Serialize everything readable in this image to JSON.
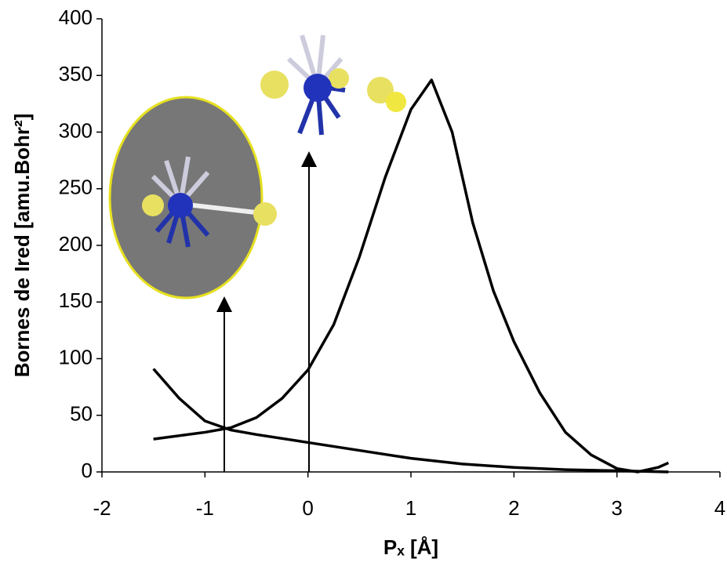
{
  "chart_data": {
    "type": "line",
    "xlabel": "Pₓ [Å]",
    "ylabel": "Bornes de Ired [amu.Bohr²]",
    "xlim": [
      -2,
      4
    ],
    "xticks": [
      -2,
      -1,
      0,
      1,
      2,
      3,
      4
    ],
    "ylim": [
      0,
      400
    ],
    "yticks": [
      0,
      50,
      100,
      150,
      200,
      250,
      300,
      350,
      400
    ],
    "grid": false,
    "series": [
      {
        "color": "#000000",
        "x": [
          -1.5,
          -1,
          -0.75,
          -0.5,
          -0.25,
          0,
          0.25,
          0.5,
          0.75,
          1,
          1.2,
          1.4,
          1.6,
          1.8,
          2,
          2.25,
          2.5,
          2.75,
          3,
          3.2,
          3.4,
          3.5
        ],
        "values": [
          29,
          35,
          39,
          48,
          65,
          90,
          130,
          190,
          260,
          320,
          346,
          300,
          220,
          160,
          115,
          70,
          35,
          15,
          3,
          0,
          4,
          8
        ]
      },
      {
        "color": "#000000",
        "x": [
          -1.5,
          -1.25,
          -1,
          -0.75,
          -0.5,
          0,
          0.5,
          1,
          1.5,
          2,
          2.5,
          3,
          3.5
        ],
        "values": [
          91,
          65,
          45,
          37,
          33,
          26,
          19,
          12,
          7,
          4,
          2,
          1,
          0
        ]
      }
    ]
  }
}
